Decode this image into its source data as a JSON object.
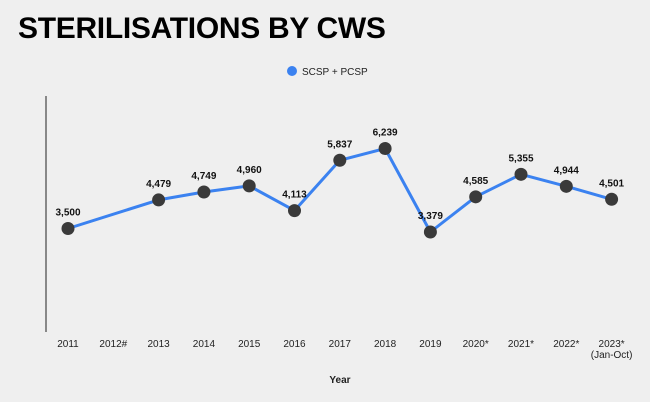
{
  "title": "STERILISATIONS BY CWS",
  "chart_data": {
    "type": "line",
    "xlabel": "Year",
    "ylabel": "",
    "categories": [
      "2011",
      "2012#",
      "2013",
      "2014",
      "2015",
      "2016",
      "2017",
      "2018",
      "2019",
      "2020*",
      "2021*",
      "2022*",
      "2023*|(Jan-Oct)"
    ],
    "series": [
      {
        "name": "SCSP + PCSP",
        "values": [
          3500,
          null,
          4479,
          4749,
          4960,
          4113,
          5837,
          6239,
          3379,
          4585,
          5355,
          4944,
          4501
        ],
        "labels": [
          "3,500",
          "",
          "4,479",
          "4,749",
          "4,960",
          "4,113",
          "5,837",
          "6,239",
          "3,379",
          "4,585",
          "5,355",
          "4,944",
          "4,501"
        ]
      }
    ],
    "legend_position": "top-center",
    "grid": false,
    "line_color": "#3b82f0",
    "marker_color": "#3a3a3a"
  }
}
